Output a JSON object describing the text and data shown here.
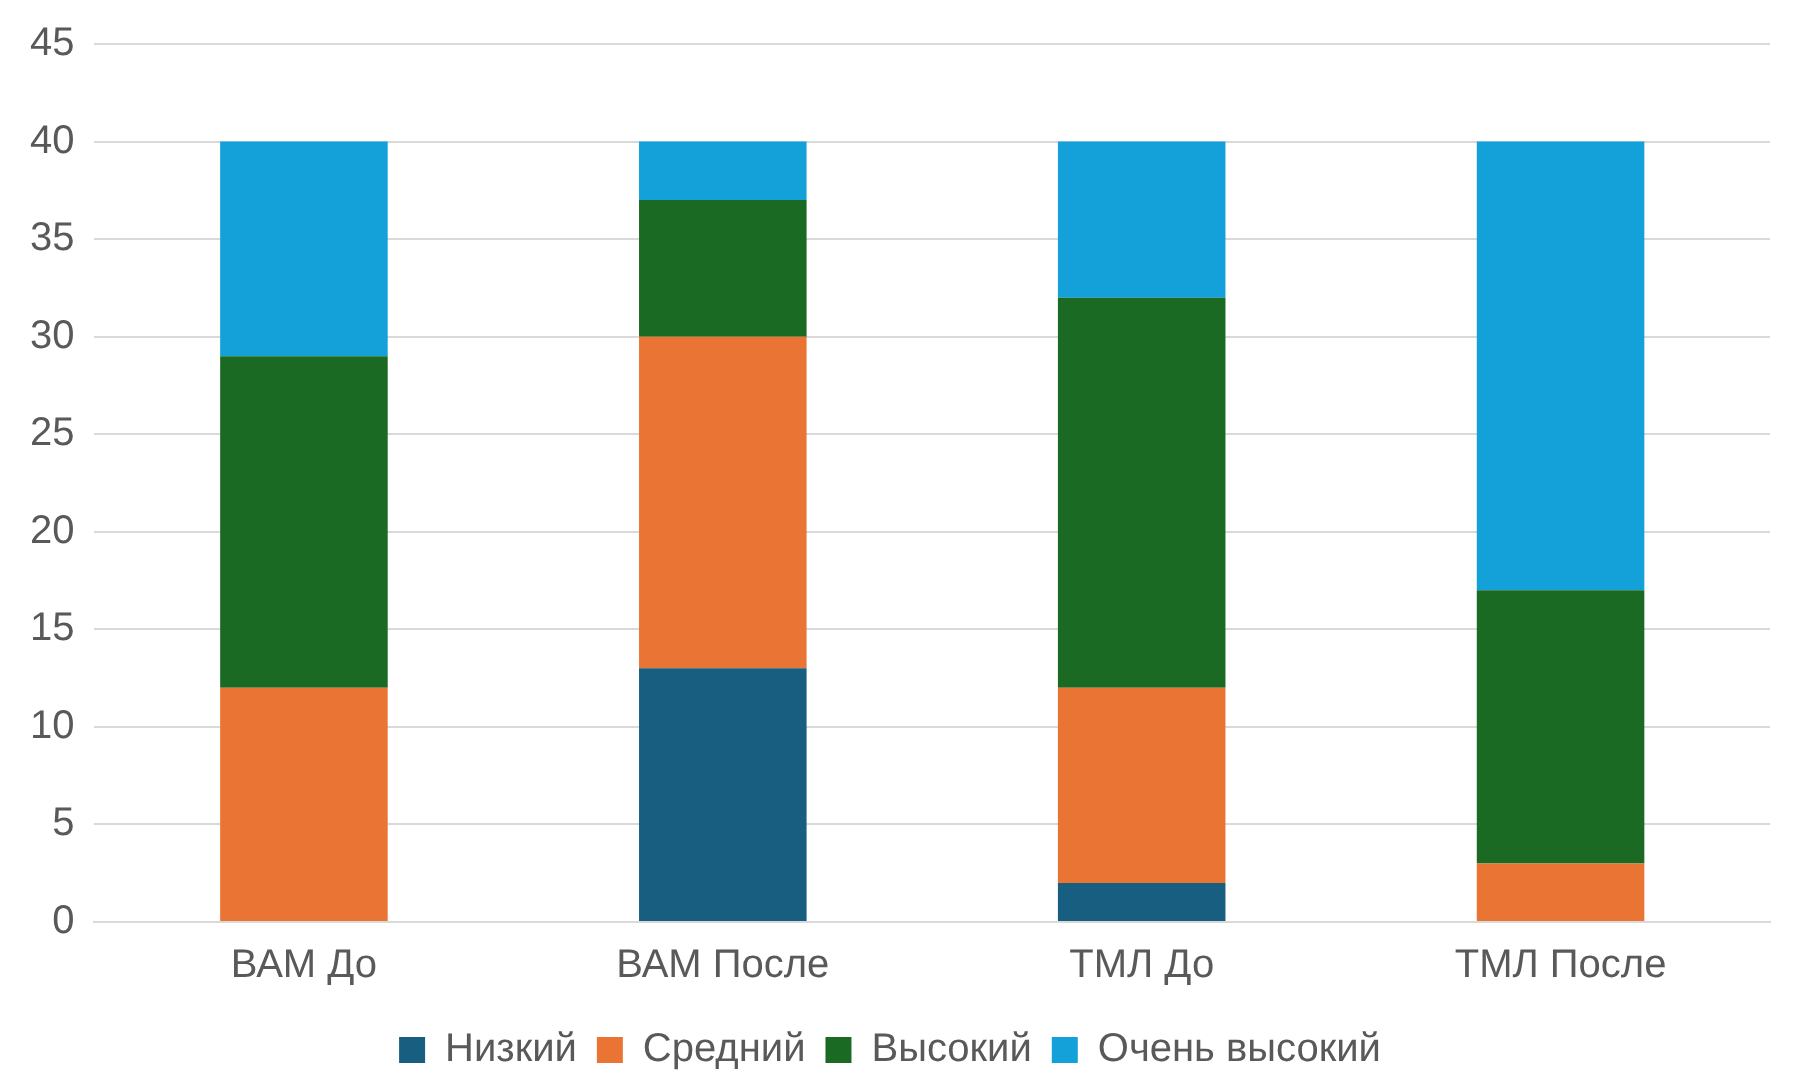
{
  "chart_data": {
    "type": "bar",
    "stacked": true,
    "categories": [
      "ВАМ До",
      "ВАМ После",
      "ТМЛ До",
      "ТМЛ После"
    ],
    "series": [
      {
        "name": "Низкий",
        "color": "#175e80",
        "values": [
          0,
          13,
          2,
          0
        ]
      },
      {
        "name": "Средний",
        "color": "#ea7433",
        "values": [
          12,
          17,
          10,
          3
        ]
      },
      {
        "name": "Высокий",
        "color": "#1b6a24",
        "values": [
          17,
          7,
          20,
          14
        ]
      },
      {
        "name": "Очень высокий",
        "color": "#14a0d8",
        "values": [
          11,
          3,
          8,
          23
        ]
      }
    ],
    "ylim": [
      0,
      45
    ],
    "yticks": [
      0,
      5,
      10,
      15,
      20,
      25,
      30,
      35,
      40,
      45
    ],
    "grid": "y",
    "legend": "bottom"
  }
}
